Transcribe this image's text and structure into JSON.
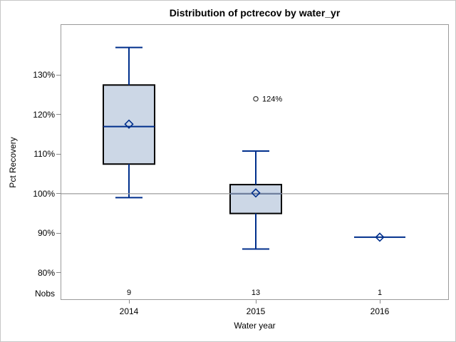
{
  "figure": {
    "title": "Distribution of pctrecov by water_yr",
    "y_axis_label": "Pct Recovery",
    "x_axis_label": "Water year",
    "nobs_row_label": "Nobs"
  },
  "chart_data": {
    "type": "boxplot",
    "title": "Distribution of pctrecov by water_yr",
    "xlabel": "Water year",
    "ylabel": "Pct Recovery",
    "categories": [
      "2014",
      "2015",
      "2016"
    ],
    "nobs": [
      "9",
      "13",
      "1"
    ],
    "y_ticks": [
      80,
      90,
      100,
      110,
      120,
      130
    ],
    "y_tick_suffix": "%",
    "ylim": [
      73.3,
      142.7
    ],
    "reference_line": 100,
    "grid": false,
    "series": [
      {
        "category": "2014",
        "n": 9,
        "whisker_low": 99,
        "q1": 107.5,
        "median": 117,
        "mean": 117.6,
        "q3": 127.5,
        "whisker_high": 137,
        "outliers": []
      },
      {
        "category": "2015",
        "n": 13,
        "whisker_low": 86,
        "q1": 95,
        "median": 100,
        "mean": 100.2,
        "q3": 102.3,
        "whisker_high": 110.8,
        "outliers": [
          {
            "value": 124,
            "label": "124%"
          }
        ]
      },
      {
        "category": "2016",
        "n": 1,
        "whisker_low": 89,
        "q1": 89,
        "median": 89,
        "mean": 89,
        "q3": 89,
        "whisker_high": 89,
        "outliers": []
      }
    ],
    "colors": {
      "box_fill": "#ccd7e6",
      "box_line": "#000000",
      "whisker": "#002f8c",
      "mean_marker": "#002f8c",
      "reference_line": "#9d9d9d",
      "outlier": "#333333",
      "axis_border": "#9a9a9a"
    }
  }
}
